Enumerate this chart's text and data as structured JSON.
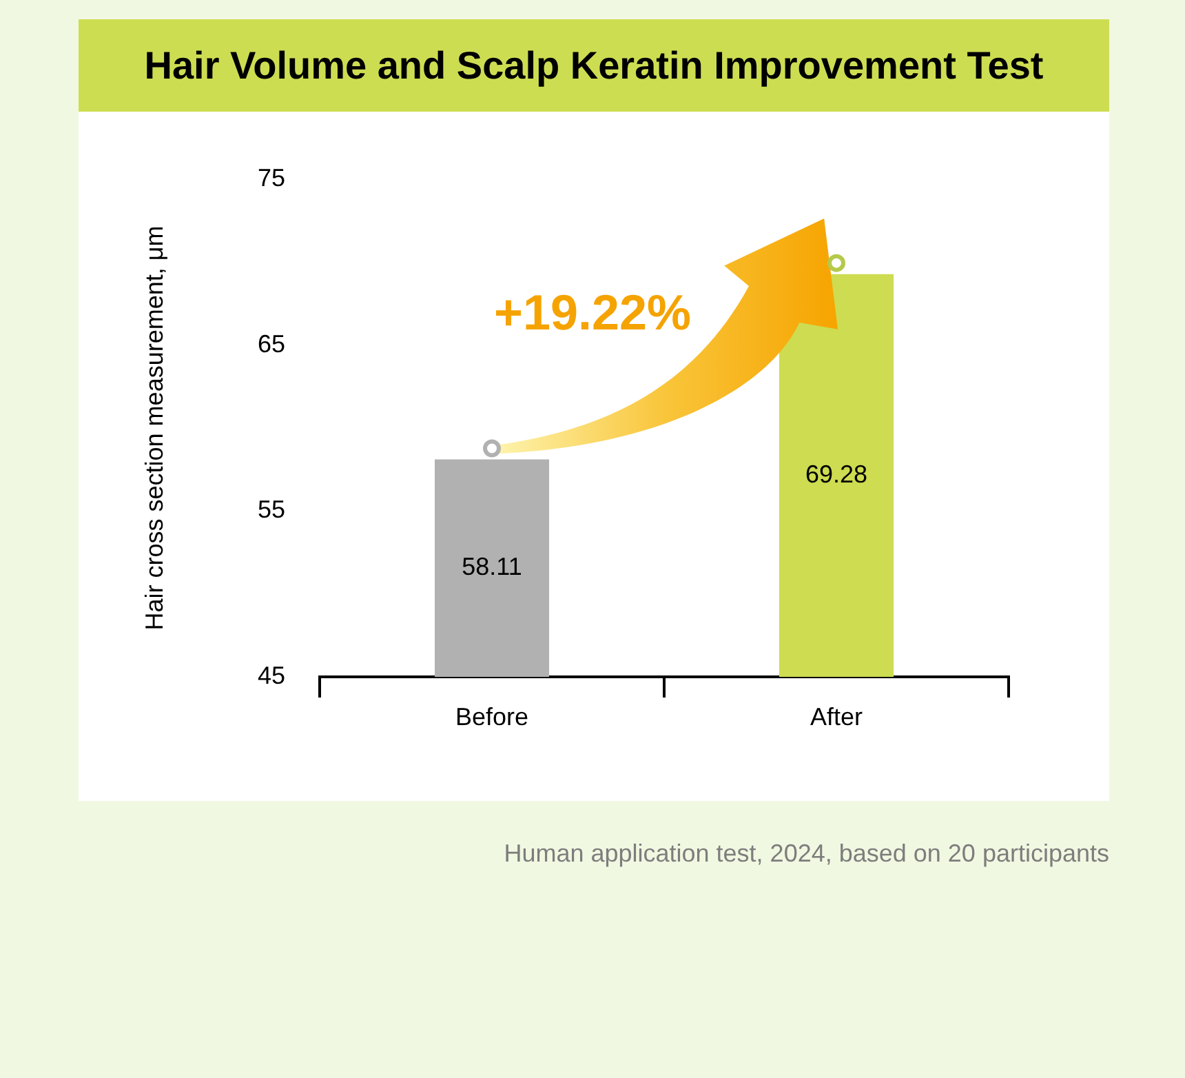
{
  "chart_data": {
    "type": "bar",
    "title": "Hair Volume and Scalp Keratin Improvement Test",
    "ylabel": "Hair cross section measurement, μm",
    "categories": [
      "Before",
      "After"
    ],
    "values": [
      58.11,
      69.28
    ],
    "colors": [
      "#b1b1b1",
      "#cddc50"
    ],
    "ylim": [
      45,
      75
    ],
    "yticks": [
      45,
      55,
      65,
      75
    ],
    "data_labels": true,
    "annotations": [
      "+19.22%",
      "Human application test, 2024, based on 20 participants"
    ]
  }
}
